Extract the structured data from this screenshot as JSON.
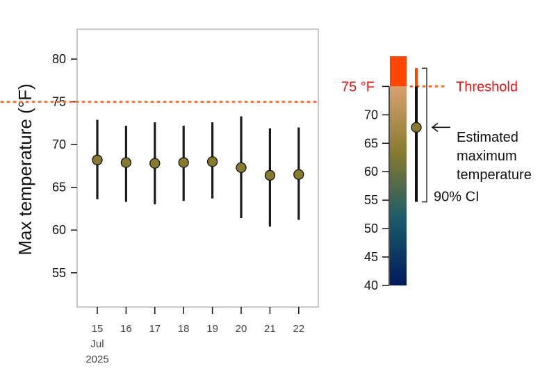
{
  "chart_data": {
    "type": "scatter",
    "ylabel": "Max temperature (°F)",
    "ylim": [
      51,
      83.5
    ],
    "yticks": [
      55,
      60,
      65,
      70,
      75,
      80
    ],
    "ytick_labels": [
      "55",
      "60",
      "65",
      "70",
      "75",
      "80"
    ],
    "x_tick_labels": [
      "15",
      "16",
      "17",
      "18",
      "19",
      "20",
      "21",
      "22"
    ],
    "x_sub_labels": [
      "Jul",
      "2025"
    ],
    "x": [
      "2025-07-15",
      "2025-07-16",
      "2025-07-17",
      "2025-07-18",
      "2025-07-19",
      "2025-07-20",
      "2025-07-21",
      "2025-07-22"
    ],
    "estimate": [
      68.2,
      67.9,
      67.8,
      67.9,
      68.0,
      67.3,
      66.4,
      66.5
    ],
    "ci_low": [
      63.6,
      63.3,
      63.0,
      63.4,
      63.7,
      61.4,
      60.4,
      61.2
    ],
    "ci_high": [
      72.9,
      72.2,
      72.6,
      72.2,
      72.6,
      73.3,
      71.9,
      72.0
    ],
    "threshold": 75,
    "point_color": "#857a2e",
    "threshold_color": "#ff6a2b",
    "legend": {
      "threshold_label": "75 °F",
      "threshold_text": "Threshold",
      "estimate_text": [
        "Estimated",
        "maximum",
        "temperature"
      ],
      "ci_text": "90% CI",
      "scale_ticks": [
        40,
        45,
        50,
        55,
        60,
        65,
        70,
        75
      ],
      "scale_tick_labels": [
        "40",
        "45",
        "50",
        "55",
        "60",
        "65",
        "70"
      ],
      "scale_range": [
        40,
        80.3
      ],
      "example_estimate": 67.8,
      "example_ci": [
        54.7,
        78.2
      ],
      "bracket_range": [
        54.7,
        78.2
      ],
      "gradient_colors": [
        "#001a5e",
        "#1a5a6a",
        "#857a2e",
        "#d9a070"
      ],
      "over_threshold_color": "#ff4500"
    }
  }
}
